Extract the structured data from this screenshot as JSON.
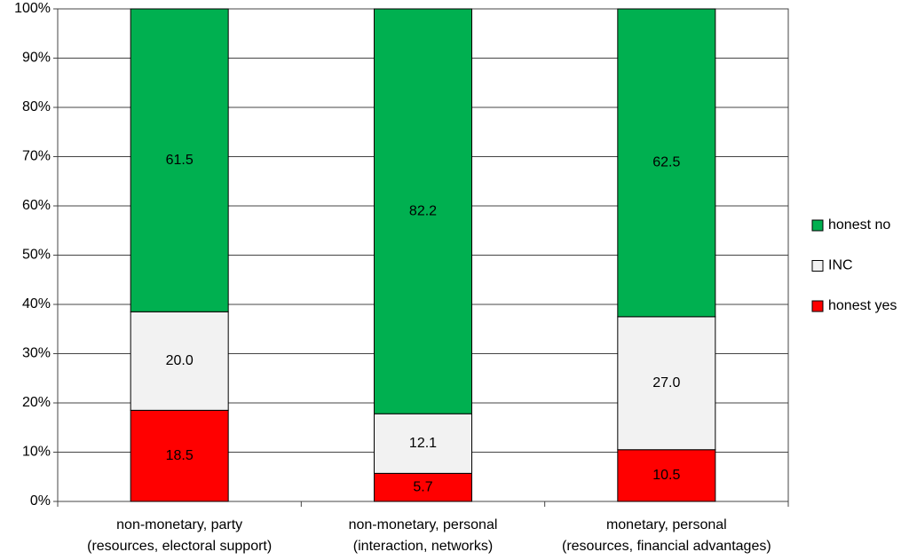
{
  "chart_data": {
    "type": "stacked_bar",
    "categories": [
      [
        "non-monetary, party",
        "(resources, electoral support)"
      ],
      [
        "non-monetary, personal",
        "(interaction, networks)"
      ],
      [
        "monetary, personal",
        "(resources, financial advantages)"
      ]
    ],
    "series": [
      {
        "name": "honest yes",
        "color": "#ff0000",
        "values": [
          18.5,
          5.7,
          10.5
        ],
        "value_labels": [
          "18.5",
          "5.7",
          "10.5"
        ]
      },
      {
        "name": "INC",
        "color": "#f2f2f2",
        "values": [
          20.0,
          12.1,
          27.0
        ],
        "value_labels": [
          "20.0",
          "12.1",
          "27.0"
        ]
      },
      {
        "name": "honest no",
        "color": "#00b050",
        "values": [
          61.5,
          82.2,
          62.5
        ],
        "value_labels": [
          "61.5",
          "82.2",
          "62.5"
        ]
      }
    ],
    "ylim": [
      0,
      100
    ],
    "yticks": [
      {
        "value": 0,
        "label": "0%"
      },
      {
        "value": 10,
        "label": "10%"
      },
      {
        "value": 20,
        "label": "20%"
      },
      {
        "value": 30,
        "label": "30%"
      },
      {
        "value": 40,
        "label": "40%"
      },
      {
        "value": 50,
        "label": "50%"
      },
      {
        "value": 60,
        "label": "60%"
      },
      {
        "value": 70,
        "label": "70%"
      },
      {
        "value": 80,
        "label": "80%"
      },
      {
        "value": 90,
        "label": "90%"
      },
      {
        "value": 100,
        "label": "100%"
      }
    ],
    "grid": true,
    "legend": "right"
  }
}
